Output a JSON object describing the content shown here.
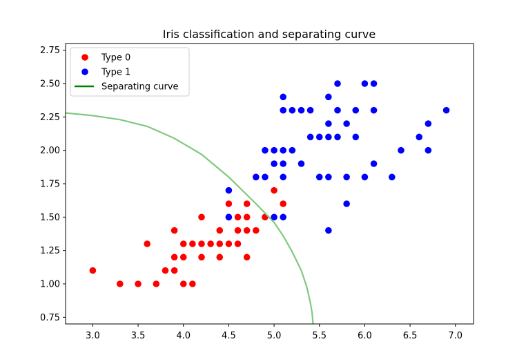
{
  "chart_data": {
    "type": "scatter",
    "title": "Iris classification and separating curve",
    "xlabel": "",
    "ylabel": "",
    "xlim": [
      2.7,
      7.2
    ],
    "ylim": [
      0.7,
      2.8
    ],
    "xticks": [
      "3.0",
      "3.5",
      "4.0",
      "4.5",
      "5.0",
      "5.5",
      "6.0",
      "6.5",
      "7.0"
    ],
    "yticks": [
      "0.75",
      "1.00",
      "1.25",
      "1.50",
      "1.75",
      "2.00",
      "2.25",
      "2.50",
      "2.75"
    ],
    "grid": false,
    "legend": {
      "placement": "top-left",
      "entries": [
        "Type 0",
        "Type 1",
        "Separating curve"
      ]
    },
    "colors": {
      "type0": "#ff0000",
      "type1": "#0000ff",
      "curve": "#008000",
      "curve_highlight": "#7fc97f"
    },
    "series": [
      {
        "name": "Type 0",
        "points": [
          [
            3.0,
            1.1
          ],
          [
            3.3,
            1.0
          ],
          [
            3.5,
            1.0
          ],
          [
            3.6,
            1.3
          ],
          [
            3.7,
            1.0
          ],
          [
            3.8,
            1.1
          ],
          [
            3.9,
            1.4
          ],
          [
            3.9,
            1.2
          ],
          [
            3.9,
            1.1
          ],
          [
            4.0,
            1.3
          ],
          [
            4.0,
            1.2
          ],
          [
            4.0,
            1.0
          ],
          [
            4.1,
            1.3
          ],
          [
            4.1,
            1.0
          ],
          [
            4.2,
            1.5
          ],
          [
            4.2,
            1.3
          ],
          [
            4.2,
            1.2
          ],
          [
            4.3,
            1.3
          ],
          [
            4.4,
            1.4
          ],
          [
            4.4,
            1.3
          ],
          [
            4.4,
            1.2
          ],
          [
            4.5,
            1.6
          ],
          [
            4.5,
            1.5
          ],
          [
            4.5,
            1.3
          ],
          [
            4.6,
            1.5
          ],
          [
            4.6,
            1.4
          ],
          [
            4.6,
            1.3
          ],
          [
            4.7,
            1.6
          ],
          [
            4.7,
            1.5
          ],
          [
            4.7,
            1.4
          ],
          [
            4.7,
            1.2
          ],
          [
            4.8,
            1.4
          ],
          [
            4.9,
            1.5
          ],
          [
            5.0,
            1.7
          ],
          [
            5.1,
            1.6
          ],
          [
            4.8,
            1.8
          ]
        ]
      },
      {
        "name": "Type 1",
        "points": [
          [
            4.5,
            1.7
          ],
          [
            4.5,
            1.5
          ],
          [
            4.8,
            1.8
          ],
          [
            4.9,
            2.0
          ],
          [
            4.9,
            1.8
          ],
          [
            5.0,
            2.0
          ],
          [
            5.0,
            1.9
          ],
          [
            5.0,
            1.5
          ],
          [
            5.1,
            2.4
          ],
          [
            5.1,
            2.3
          ],
          [
            5.1,
            2.0
          ],
          [
            5.1,
            1.9
          ],
          [
            5.1,
            1.8
          ],
          [
            5.1,
            1.5
          ],
          [
            5.2,
            2.3
          ],
          [
            5.2,
            2.0
          ],
          [
            5.3,
            2.3
          ],
          [
            5.3,
            1.9
          ],
          [
            5.4,
            2.3
          ],
          [
            5.4,
            2.1
          ],
          [
            5.5,
            2.1
          ],
          [
            5.5,
            1.8
          ],
          [
            5.6,
            2.4
          ],
          [
            5.6,
            2.2
          ],
          [
            5.6,
            2.1
          ],
          [
            5.6,
            1.8
          ],
          [
            5.6,
            1.4
          ],
          [
            5.7,
            2.5
          ],
          [
            5.7,
            2.3
          ],
          [
            5.7,
            2.1
          ],
          [
            5.8,
            2.2
          ],
          [
            5.8,
            1.8
          ],
          [
            5.8,
            1.6
          ],
          [
            5.9,
            2.3
          ],
          [
            5.9,
            2.1
          ],
          [
            6.0,
            2.5
          ],
          [
            6.0,
            1.8
          ],
          [
            6.1,
            2.5
          ],
          [
            6.1,
            2.3
          ],
          [
            6.1,
            1.9
          ],
          [
            6.3,
            1.8
          ],
          [
            6.4,
            2.0
          ],
          [
            6.6,
            2.1
          ],
          [
            6.7,
            2.2
          ],
          [
            6.7,
            2.0
          ],
          [
            6.9,
            2.3
          ]
        ]
      },
      {
        "name": "Separating curve",
        "type": "line",
        "points": [
          [
            2.7,
            2.28
          ],
          [
            3.0,
            2.26
          ],
          [
            3.3,
            2.23
          ],
          [
            3.6,
            2.18
          ],
          [
            3.9,
            2.09
          ],
          [
            4.2,
            1.97
          ],
          [
            4.5,
            1.8
          ],
          [
            4.8,
            1.6
          ],
          [
            5.0,
            1.46
          ],
          [
            5.1,
            1.36
          ],
          [
            5.2,
            1.24
          ],
          [
            5.3,
            1.1
          ],
          [
            5.36,
            0.98
          ],
          [
            5.4,
            0.86
          ],
          [
            5.42,
            0.78
          ],
          [
            5.43,
            0.7
          ]
        ]
      }
    ]
  }
}
